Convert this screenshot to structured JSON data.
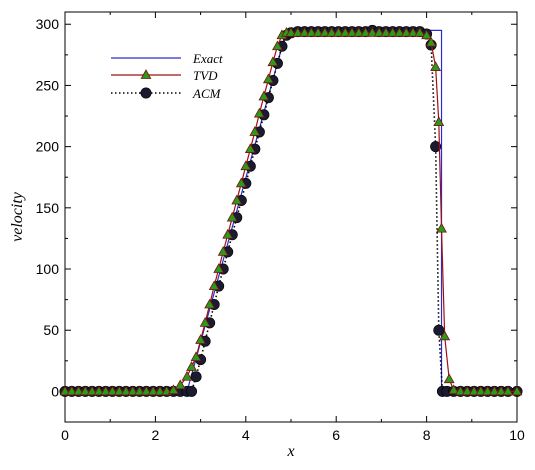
{
  "chart_data": {
    "type": "line",
    "title": "",
    "xlabel": "x",
    "ylabel": "velocity",
    "xlim": [
      0,
      10
    ],
    "ylim": [
      -25,
      310
    ],
    "xticks": [
      "0",
      "2",
      "4",
      "6",
      "8",
      "10"
    ],
    "yticks": [
      "0",
      "50",
      "100",
      "150",
      "200",
      "250",
      "300"
    ],
    "grid": false,
    "legend_placement": "top-left",
    "series": [
      {
        "name": "Exact",
        "style": "solid",
        "color": "#2a2ad0",
        "marker": "none",
        "x": [
          0,
          2.7,
          4.9,
          8.33,
          8.33,
          10
        ],
        "y": [
          0,
          0,
          295,
          295,
          0,
          0
        ]
      },
      {
        "name": "TVD",
        "style": "solid",
        "color": "#a01010",
        "marker": "triangle",
        "marker_color": "#2a9a1a",
        "x": [
          0.0,
          0.15,
          0.3,
          0.45,
          0.6,
          0.75,
          0.9,
          1.05,
          1.2,
          1.35,
          1.5,
          1.65,
          1.8,
          1.95,
          2.1,
          2.25,
          2.4,
          2.55,
          2.7,
          2.8,
          2.9,
          3.0,
          3.1,
          3.2,
          3.3,
          3.4,
          3.5,
          3.6,
          3.7,
          3.8,
          3.9,
          4.0,
          4.1,
          4.2,
          4.3,
          4.4,
          4.5,
          4.6,
          4.7,
          4.8,
          4.9,
          5.0,
          5.15,
          5.3,
          5.45,
          5.6,
          5.75,
          5.9,
          6.05,
          6.2,
          6.35,
          6.5,
          6.65,
          6.8,
          6.95,
          7.1,
          7.25,
          7.4,
          7.55,
          7.7,
          7.85,
          8.0,
          8.1,
          8.2,
          8.27,
          8.33,
          8.4,
          8.5,
          8.6,
          8.75,
          8.9,
          9.05,
          9.2,
          9.35,
          9.5,
          9.65,
          9.8,
          10.0
        ],
        "y": [
          0,
          0,
          0,
          0,
          0,
          0,
          0,
          0,
          0,
          0,
          0,
          0,
          0,
          0,
          0,
          0,
          1,
          5,
          12,
          20,
          28,
          42,
          56,
          71,
          86,
          100,
          114,
          128,
          142,
          156,
          170,
          184,
          198,
          212,
          227,
          241,
          255,
          269,
          282,
          291,
          293,
          293,
          293,
          293,
          293,
          293,
          293,
          293,
          293,
          293,
          293,
          293,
          293,
          293,
          293,
          293,
          293,
          293,
          293,
          293,
          293,
          291,
          285,
          265,
          220,
          133,
          45,
          10,
          1,
          0,
          0,
          0,
          0,
          0,
          0,
          0,
          0,
          0
        ]
      },
      {
        "name": "ACM",
        "style": "dotted",
        "color": "#000000",
        "marker": "circle",
        "marker_color": "#1a1a30",
        "x": [
          0.0,
          0.15,
          0.3,
          0.45,
          0.6,
          0.75,
          0.9,
          1.05,
          1.2,
          1.35,
          1.5,
          1.65,
          1.8,
          1.95,
          2.1,
          2.25,
          2.4,
          2.55,
          2.7,
          2.8,
          2.9,
          3.0,
          3.1,
          3.2,
          3.3,
          3.4,
          3.5,
          3.6,
          3.7,
          3.8,
          3.9,
          4.0,
          4.1,
          4.2,
          4.3,
          4.4,
          4.5,
          4.6,
          4.7,
          4.8,
          4.9,
          5.0,
          5.15,
          5.3,
          5.45,
          5.6,
          5.75,
          5.9,
          6.05,
          6.2,
          6.35,
          6.5,
          6.65,
          6.8,
          6.95,
          7.1,
          7.25,
          7.4,
          7.55,
          7.7,
          7.85,
          8.0,
          8.1,
          8.2,
          8.27,
          8.35,
          8.45,
          8.6,
          8.75,
          8.9,
          9.05,
          9.2,
          9.35,
          9.5,
          9.65,
          9.8,
          10.0
        ],
        "y": [
          0,
          0,
          0,
          0,
          0,
          0,
          0,
          0,
          0,
          0,
          0,
          0,
          0,
          0,
          0,
          0,
          0,
          0,
          0,
          0,
          12,
          26,
          41,
          56,
          71,
          86,
          100,
          114,
          128,
          142,
          156,
          170,
          184,
          198,
          212,
          226,
          240,
          254,
          268,
          282,
          291,
          293,
          294,
          294,
          294,
          294,
          294,
          294,
          294,
          294,
          294,
          294,
          294,
          295,
          294,
          294,
          294,
          294,
          294,
          294,
          294,
          292,
          283,
          200,
          50,
          0,
          0,
          0,
          0,
          0,
          0,
          0,
          0,
          0,
          0,
          0,
          0
        ]
      }
    ]
  }
}
